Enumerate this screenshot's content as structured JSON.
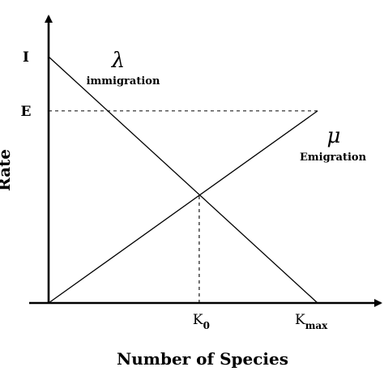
{
  "chart_data": {
    "type": "line",
    "title": "",
    "xlabel": "Number of Species",
    "ylabel": "Rate",
    "xlim": [
      0,
      1
    ],
    "ylim": [
      0,
      1
    ],
    "x_ticks": [
      {
        "label": "K",
        "sub": "0",
        "x": 0.56
      },
      {
        "label": "K",
        "sub": "max",
        "x": 1.0
      }
    ],
    "y_ticks": [
      {
        "label": "I",
        "y": 1.0
      },
      {
        "label": "E",
        "y": 0.78
      }
    ],
    "series": [
      {
        "symbol": "λ",
        "name": "immigration",
        "x": [
          0,
          1.0
        ],
        "y": [
          1.0,
          0
        ]
      },
      {
        "symbol": "μ",
        "name": "Emigration",
        "x": [
          0,
          1.0
        ],
        "y": [
          0,
          0.78
        ]
      }
    ],
    "reference_lines": [
      {
        "from": [
          0,
          0.78
        ],
        "to": [
          1.0,
          0.78
        ],
        "style": "dashed"
      },
      {
        "from": [
          0.56,
          0
        ],
        "to": [
          0.56,
          0.44
        ],
        "style": "dashed"
      }
    ]
  }
}
